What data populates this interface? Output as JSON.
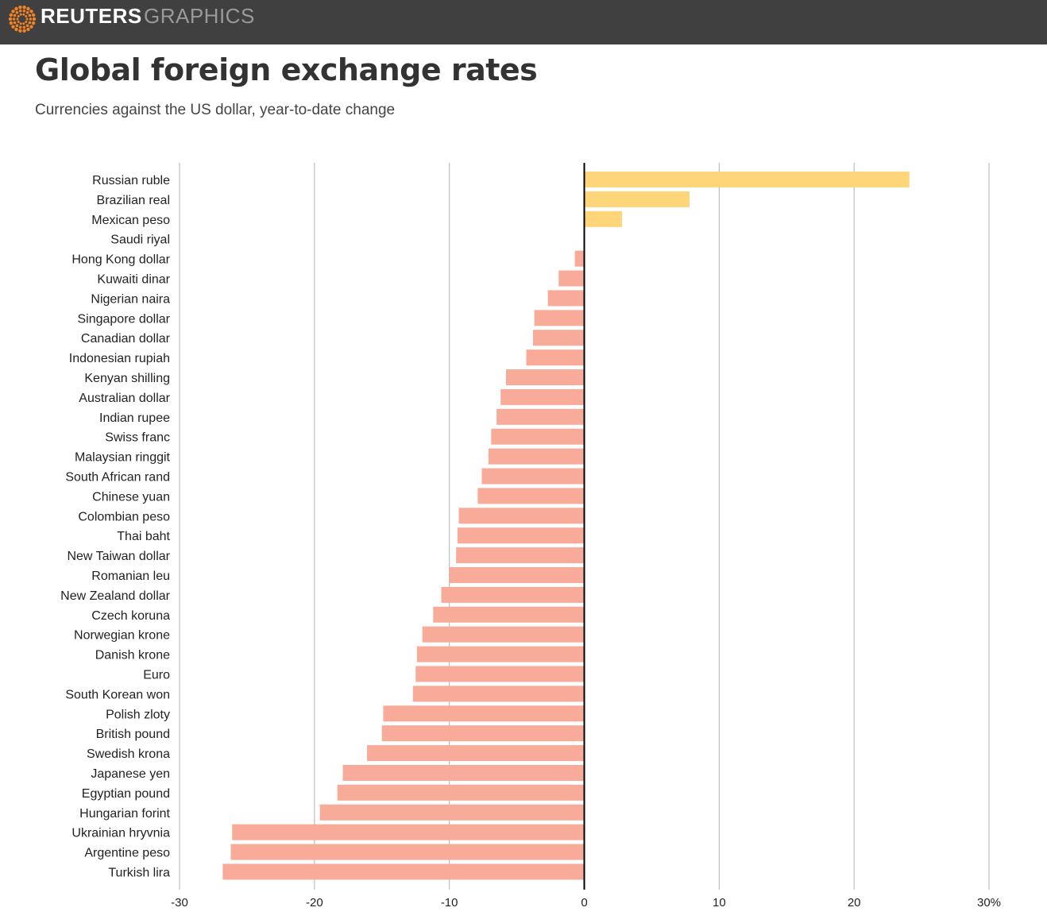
{
  "header": {
    "brand": "REUTERS",
    "section": "GRAPHICS",
    "logo_icon": "reuters-dot-ring-icon"
  },
  "colors": {
    "topbar": "#404040",
    "positive_bar": "#FED679",
    "negative_bar": "#F7AB98",
    "gridline": "#bdbdbd",
    "zero_line": "#000000"
  },
  "chart_data": {
    "type": "bar",
    "orientation": "horizontal",
    "title": "Global foreign exchange rates",
    "subtitle": "Currencies against the US dollar, year-to-date change",
    "xlabel": "",
    "ylabel": "",
    "xlim": [
      -30,
      30
    ],
    "x_ticks": [
      -30,
      -20,
      -10,
      0,
      10,
      20,
      30
    ],
    "x_tick_labels": [
      "-30",
      "-20",
      "-10",
      "0",
      "10",
      "20",
      "30%"
    ],
    "grid": true,
    "categories": [
      "Russian ruble",
      "Brazilian real",
      "Mexican peso",
      "Saudi riyal",
      "Hong Kong dollar",
      "Kuwaiti dinar",
      "Nigerian naira",
      "Singapore dollar",
      "Canadian dollar",
      "Indonesian rupiah",
      "Kenyan shilling",
      "Australian dollar",
      "Indian rupee",
      "Swiss franc",
      "Malaysian ringgit",
      "South African rand",
      "Chinese yuan",
      "Colombian peso",
      "Thai baht",
      "New Taiwan dollar",
      "Romanian leu",
      "New Zealand dollar",
      "Czech koruna",
      "Norwegian krone",
      "Danish krone",
      "Euro",
      "South Korean won",
      "Polish zloty",
      "British pound",
      "Swedish krona",
      "Japanese yen",
      "Egyptian pound",
      "Hungarian forint",
      "Ukrainian hryvnia",
      "Argentine peso",
      "Turkish lira"
    ],
    "values": [
      24.1,
      7.8,
      2.8,
      0.0,
      -0.7,
      -1.9,
      -2.7,
      -3.7,
      -3.8,
      -4.3,
      -5.8,
      -6.2,
      -6.5,
      -6.9,
      -7.1,
      -7.6,
      -7.9,
      -9.3,
      -9.4,
      -9.5,
      -10.0,
      -10.6,
      -11.2,
      -12.0,
      -12.4,
      -12.5,
      -12.7,
      -14.9,
      -15.0,
      -16.1,
      -17.9,
      -18.3,
      -19.6,
      -26.1,
      -26.2,
      -26.8
    ]
  }
}
